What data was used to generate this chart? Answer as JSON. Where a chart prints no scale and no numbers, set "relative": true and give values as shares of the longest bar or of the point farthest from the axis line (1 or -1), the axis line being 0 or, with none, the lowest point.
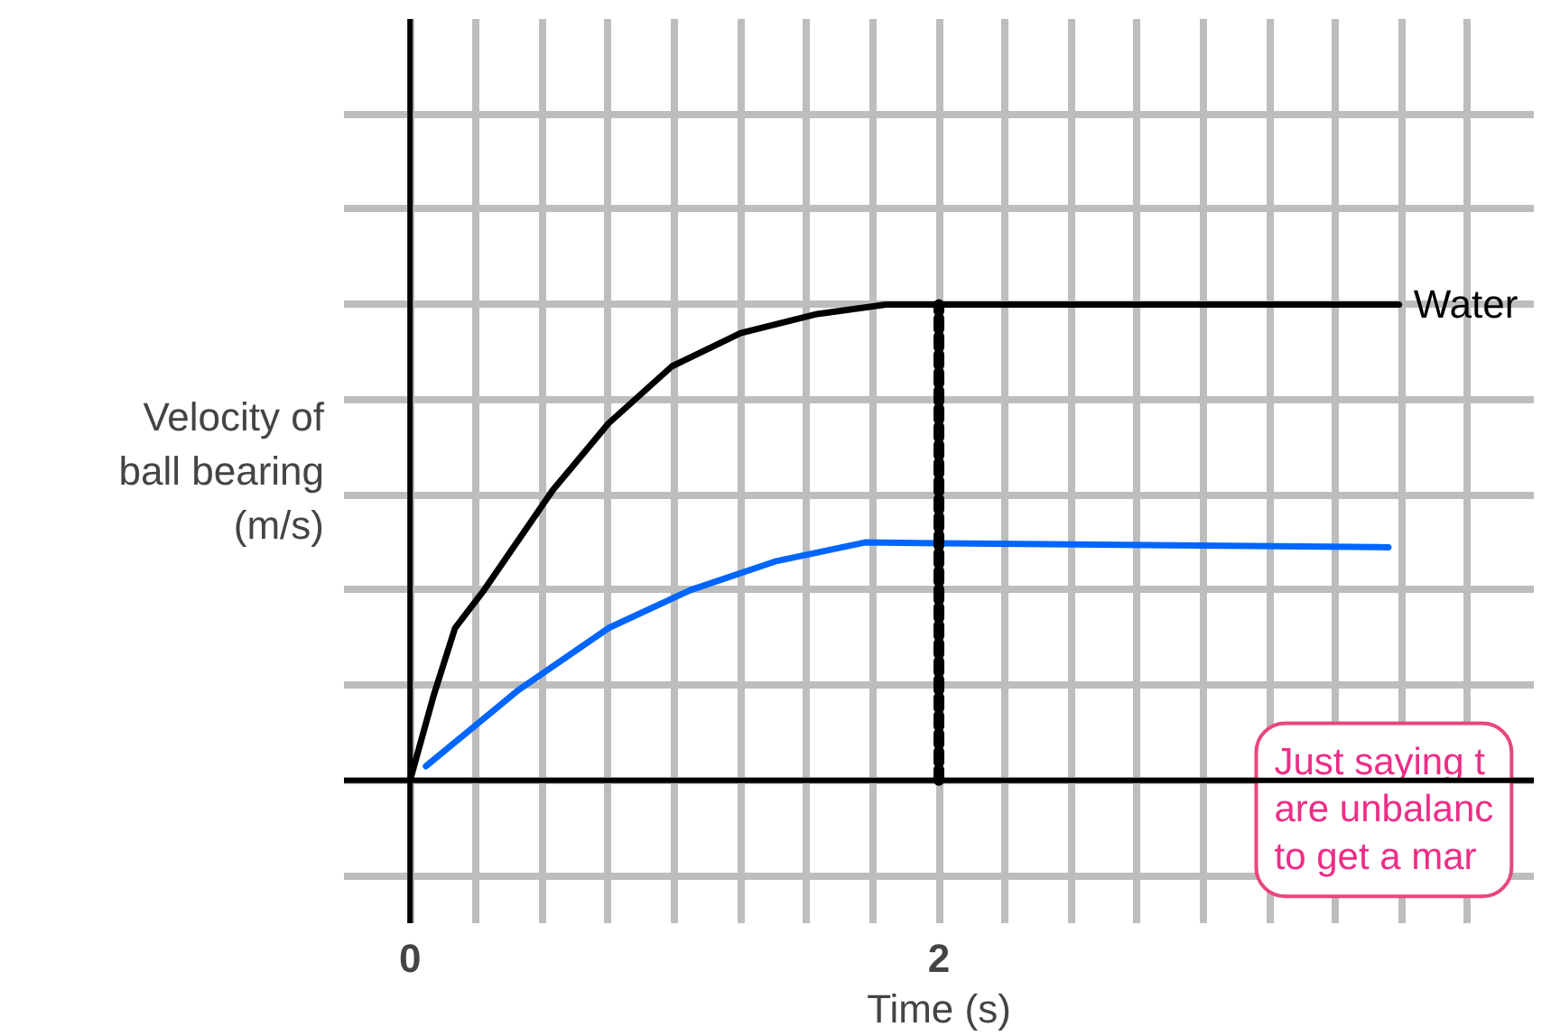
{
  "chart_data": {
    "type": "line",
    "relative": true,
    "xlabel": "Time (s)",
    "ylabel": "Velocity of\nball bearing\n(m/s)",
    "xlim": [
      -0.25,
      4.25
    ],
    "xticks": [
      0,
      {
        "value": 0.25,
        "label": null
      },
      {
        "value": 0.5,
        "label": null
      },
      {
        "value": 0.75,
        "label": null
      },
      {
        "value": 1,
        "label": null
      },
      {
        "value": 1.25,
        "label": null
      },
      {
        "value": 1.5,
        "label": null
      },
      {
        "value": 1.75,
        "label": null
      },
      2,
      {
        "value": 2.25,
        "label": null
      },
      {
        "value": 2.5,
        "label": null
      },
      {
        "value": 2.75,
        "label": null
      },
      {
        "value": 3,
        "label": null
      },
      {
        "value": 3.25,
        "label": null
      },
      {
        "value": 3.5,
        "label": null
      },
      {
        "value": 3.75,
        "label": null
      },
      {
        "value": 4,
        "label": null
      }
    ],
    "grid": true,
    "line_style": "solid",
    "series": [
      {
        "name": "Water",
        "color": "#000000",
        "x": [
          0,
          0.09,
          0.17,
          0.28,
          0.54,
          0.75,
          0.99,
          1.25,
          1.54,
          1.8,
          3.74
        ],
        "values": [
          0,
          0.18,
          0.32,
          0.4,
          0.61,
          0.75,
          0.87,
          0.94,
          0.98,
          1,
          1
        ]
      },
      {
        "color": "#0066ff",
        "x": [
          0.06,
          0.41,
          0.75,
          1.06,
          1.38,
          1.72,
          3.7
        ],
        "values": [
          0.03,
          0.19,
          0.32,
          0.4,
          0.46,
          0.5,
          0.49
        ]
      },
      {
        "color": "#000000",
        "line_style": "dashed",
        "x": [
          2,
          2
        ],
        "values": [
          0,
          1
        ]
      }
    ],
    "annotations": [
      "Just saying t\nare unbalanc\nto get a mar"
    ]
  }
}
